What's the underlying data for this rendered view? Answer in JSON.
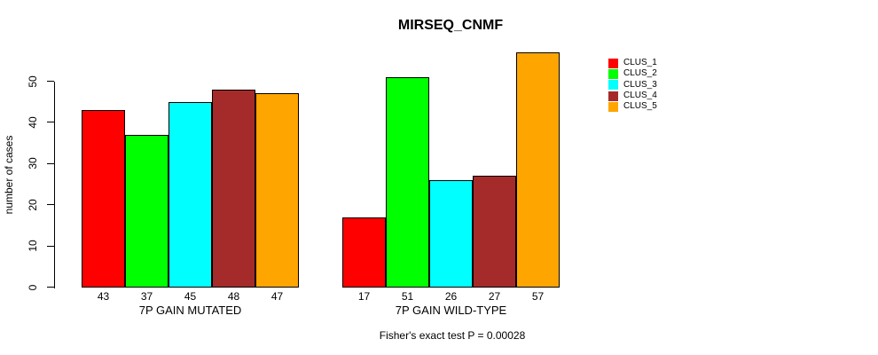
{
  "chart_data": {
    "type": "bar",
    "title": "MIRSEQ_CNMF",
    "ylabel": "number of cases",
    "xlabel": "",
    "footnote": "Fisher's exact test P = 0.00028",
    "categories": [
      "7P GAIN MUTATED",
      "7P GAIN WILD-TYPE"
    ],
    "series": [
      {
        "name": "CLUS_1",
        "color": "#FF0000",
        "values": [
          43,
          17
        ]
      },
      {
        "name": "CLUS_2",
        "color": "#00FF00",
        "values": [
          37,
          51
        ]
      },
      {
        "name": "CLUS_3",
        "color": "#00FFFF",
        "values": [
          45,
          26
        ]
      },
      {
        "name": "CLUS_4",
        "color": "#A52A2A",
        "values": [
          48,
          27
        ]
      },
      {
        "name": "CLUS_5",
        "color": "#FFA500",
        "values": [
          47,
          57
        ]
      }
    ],
    "bar_value_labels": [
      [
        43,
        37,
        45,
        48,
        47
      ],
      [
        17,
        51,
        26,
        27,
        57
      ]
    ],
    "yticks": [
      0,
      10,
      20,
      30,
      40,
      50
    ],
    "ylim": [
      0,
      57
    ],
    "grid": false,
    "legend_position": "top-right-outside",
    "axis_color": "#000000",
    "background_color": "#FFFFFF"
  }
}
